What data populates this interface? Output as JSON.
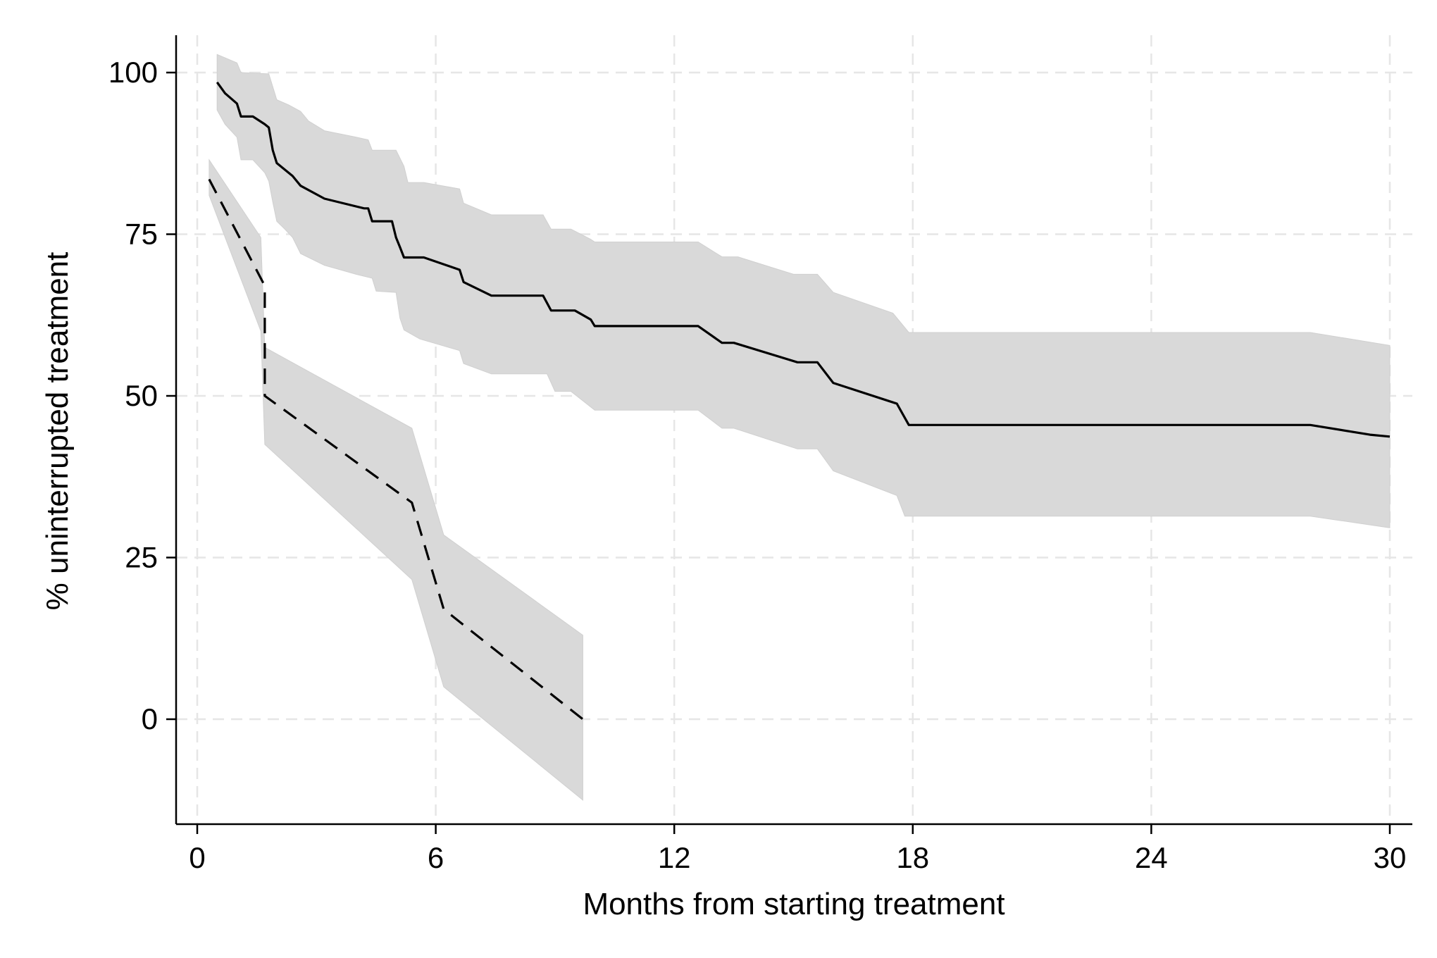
{
  "chart_data": {
    "type": "line",
    "title": "",
    "xlabel": "Months from starting treatment",
    "ylabel": "% uninterrupted treatment",
    "xlim": [
      -0.5,
      30.5
    ],
    "ylim": [
      -16,
      106
    ],
    "x_ticks": [
      0,
      6,
      12,
      18,
      24,
      30
    ],
    "y_ticks": [
      0,
      25,
      50,
      75,
      100
    ],
    "x_tick_labels": [
      "0",
      "6",
      "12",
      "18",
      "24",
      "30"
    ],
    "y_tick_labels": [
      "0",
      "25",
      "50",
      "75",
      "100"
    ],
    "grid": true,
    "legend": "none",
    "colors": {
      "ci_band": "#d9d9d9",
      "line": "#000000",
      "grid": "#e6e6e6"
    },
    "series": [
      {
        "style": "solid",
        "points": [
          [
            0.5,
            98.5
          ],
          [
            0.7,
            96.8
          ],
          [
            1.0,
            95.2
          ],
          [
            1.1,
            93.2
          ],
          [
            1.4,
            93.2
          ],
          [
            1.7,
            92.0
          ],
          [
            1.8,
            91.5
          ],
          [
            1.9,
            88.0
          ],
          [
            2.0,
            86.0
          ],
          [
            2.4,
            84.0
          ],
          [
            2.6,
            82.5
          ],
          [
            3.2,
            80.5
          ],
          [
            4.2,
            79.0
          ],
          [
            4.3,
            79.0
          ],
          [
            4.4,
            77.0
          ],
          [
            4.9,
            77.0
          ],
          [
            5.0,
            74.5
          ],
          [
            5.1,
            73.0
          ],
          [
            5.2,
            71.4
          ],
          [
            5.7,
            71.4
          ],
          [
            6.6,
            69.5
          ],
          [
            6.7,
            67.6
          ],
          [
            7.4,
            65.5
          ],
          [
            8.7,
            65.5
          ],
          [
            8.9,
            63.2
          ],
          [
            9.5,
            63.2
          ],
          [
            9.9,
            61.8
          ],
          [
            10.0,
            60.8
          ],
          [
            12.6,
            60.8
          ],
          [
            13.2,
            58.2
          ],
          [
            13.5,
            58.2
          ],
          [
            15.1,
            55.2
          ],
          [
            15.6,
            55.2
          ],
          [
            16.0,
            52.0
          ],
          [
            17.5,
            49.0
          ],
          [
            17.6,
            48.8
          ],
          [
            17.9,
            45.5
          ],
          [
            28.0,
            45.5
          ],
          [
            29.5,
            44.0
          ],
          [
            30.0,
            43.7
          ]
        ],
        "ci_upper": [
          [
            0.5,
            102.8
          ],
          [
            1.0,
            101.5
          ],
          [
            1.1,
            100.0
          ],
          [
            1.8,
            99.8
          ],
          [
            2.0,
            95.8
          ],
          [
            2.3,
            95.0
          ],
          [
            2.6,
            94.0
          ],
          [
            2.8,
            92.5
          ],
          [
            3.2,
            91.0
          ],
          [
            4.0,
            90.0
          ],
          [
            4.3,
            89.6
          ],
          [
            4.4,
            88.0
          ],
          [
            5.0,
            88.0
          ],
          [
            5.2,
            85.5
          ],
          [
            5.3,
            83.0
          ],
          [
            5.7,
            83.0
          ],
          [
            6.6,
            82.0
          ],
          [
            6.7,
            79.8
          ],
          [
            7.4,
            78.0
          ],
          [
            8.7,
            78.0
          ],
          [
            8.9,
            75.8
          ],
          [
            9.4,
            75.8
          ],
          [
            9.9,
            74.2
          ],
          [
            10.0,
            73.8
          ],
          [
            12.6,
            73.8
          ],
          [
            13.2,
            71.5
          ],
          [
            13.6,
            71.5
          ],
          [
            15.0,
            68.8
          ],
          [
            15.6,
            68.8
          ],
          [
            16.0,
            66.0
          ],
          [
            17.5,
            62.8
          ],
          [
            17.9,
            59.8
          ],
          [
            28.0,
            59.8
          ],
          [
            30.0,
            57.8
          ]
        ],
        "ci_lower": [
          [
            0.5,
            94.2
          ],
          [
            0.7,
            92.0
          ],
          [
            1.0,
            90.0
          ],
          [
            1.1,
            86.5
          ],
          [
            1.4,
            86.5
          ],
          [
            1.7,
            84.5
          ],
          [
            1.8,
            83.2
          ],
          [
            1.9,
            80.0
          ],
          [
            2.0,
            77.0
          ],
          [
            2.2,
            75.8
          ],
          [
            2.4,
            74.5
          ],
          [
            2.6,
            72.0
          ],
          [
            3.2,
            70.2
          ],
          [
            4.0,
            68.8
          ],
          [
            4.4,
            68.2
          ],
          [
            4.5,
            66.2
          ],
          [
            5.0,
            66.0
          ],
          [
            5.1,
            62.0
          ],
          [
            5.2,
            60.2
          ],
          [
            5.6,
            58.8
          ],
          [
            6.6,
            57.0
          ],
          [
            6.7,
            55.0
          ],
          [
            7.4,
            53.4
          ],
          [
            8.8,
            53.4
          ],
          [
            9.0,
            50.7
          ],
          [
            9.4,
            50.7
          ],
          [
            10.0,
            47.8
          ],
          [
            12.6,
            47.8
          ],
          [
            13.2,
            45.0
          ],
          [
            13.5,
            45.0
          ],
          [
            15.1,
            41.8
          ],
          [
            15.6,
            41.8
          ],
          [
            16.0,
            38.4
          ],
          [
            17.6,
            34.6
          ],
          [
            17.8,
            31.4
          ],
          [
            28.0,
            31.4
          ],
          [
            30.0,
            29.6
          ]
        ]
      },
      {
        "style": "dashed",
        "points": [
          [
            0.3,
            83.5
          ],
          [
            1.7,
            67.0
          ],
          [
            1.7,
            50.0
          ],
          [
            5.4,
            33.5
          ],
          [
            6.2,
            17.0
          ],
          [
            9.7,
            0.0
          ]
        ],
        "ci_upper": [
          [
            0.3,
            86.5
          ],
          [
            1.6,
            74.5
          ],
          [
            1.7,
            57.5
          ],
          [
            5.4,
            45.0
          ],
          [
            6.2,
            28.5
          ],
          [
            9.7,
            13.0
          ]
        ],
        "ci_lower": [
          [
            0.3,
            81.0
          ],
          [
            1.6,
            60.0
          ],
          [
            1.7,
            42.5
          ],
          [
            5.4,
            21.6
          ],
          [
            6.2,
            5.0
          ],
          [
            9.7,
            -12.5
          ]
        ]
      }
    ]
  }
}
